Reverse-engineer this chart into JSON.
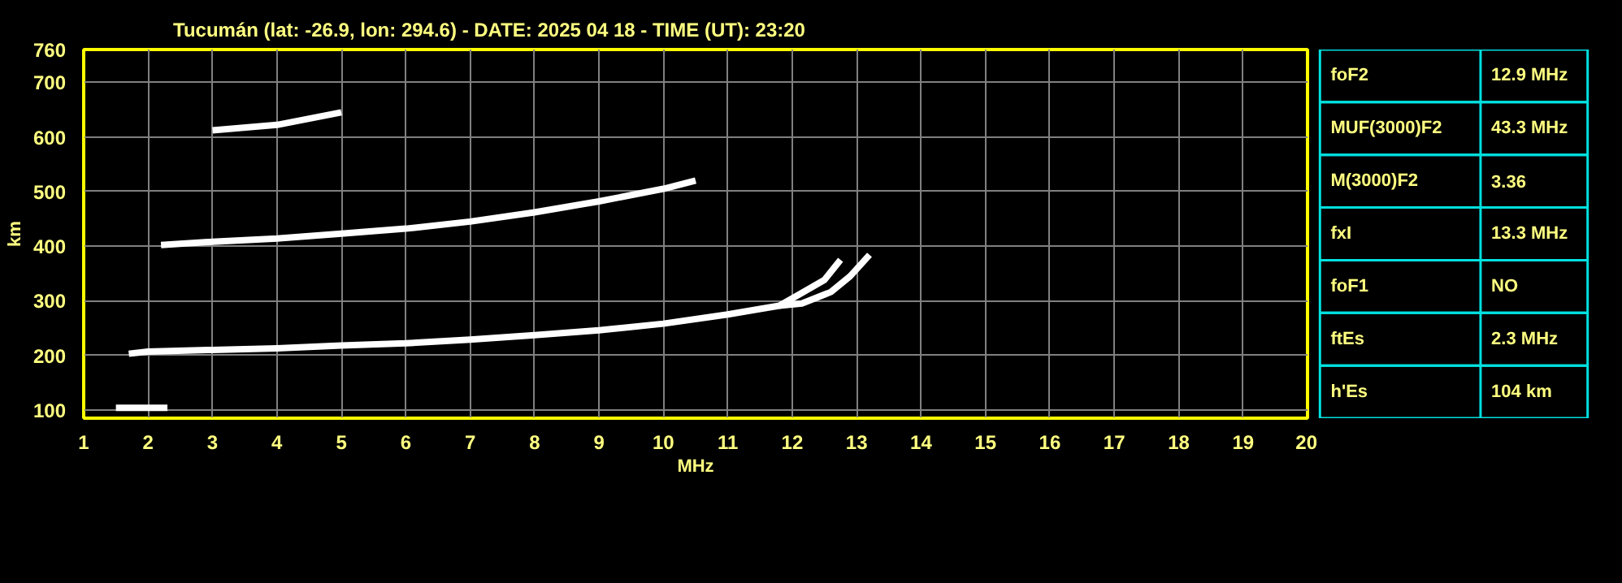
{
  "chart_data": [
    {
      "type": "line",
      "title": "Tucumán (lat: -26.9, lon: 294.6) - DATE: 2025 04 18 - TIME (UT): 23:20",
      "xlabel": "MHz",
      "ylabel": "km",
      "xlim": [
        1,
        20
      ],
      "ylim": [
        85,
        760
      ],
      "xticks": [
        1,
        2,
        3,
        4,
        5,
        6,
        7,
        8,
        9,
        10,
        11,
        12,
        13,
        14,
        15,
        16,
        17,
        18,
        19,
        20
      ],
      "yticks": [
        100,
        200,
        300,
        400,
        500,
        600,
        700,
        760
      ],
      "grid": true,
      "marker": "none",
      "line_style": "solid",
      "series": [
        {
          "color": "#ffffff",
          "x": [
            1.7,
            2,
            3,
            4,
            5,
            6,
            7,
            8,
            9,
            10,
            11,
            11.5,
            11.8,
            12.1,
            12.5,
            12.75
          ],
          "values": [
            203,
            207,
            210,
            213,
            218,
            222,
            229,
            237,
            246,
            258,
            275,
            285,
            291,
            311,
            338,
            375
          ]
        },
        {
          "color": "#ffffff",
          "x": [
            11.8,
            12.15,
            12.6,
            12.9,
            13.2
          ],
          "values": [
            291,
            295,
            316,
            345,
            384
          ]
        },
        {
          "color": "#ffffff",
          "x": [
            2.2,
            3,
            4,
            5,
            6,
            7,
            8,
            9,
            10,
            10.5
          ],
          "values": [
            402,
            408,
            414,
            423,
            432,
            445,
            462,
            482,
            505,
            520
          ]
        },
        {
          "color": "#ffffff",
          "x": [
            3,
            4,
            5
          ],
          "values": [
            612,
            622,
            645
          ]
        },
        {
          "color": "#ffffff",
          "x": [
            1.5,
            2.3
          ],
          "values": [
            104,
            104
          ]
        }
      ]
    },
    {
      "type": "other",
      "annotations": [
        "foF2",
        "12.9 MHz",
        "MUF(3000)F2",
        "43.3 MHz",
        "M(3000)F2",
        "3.36",
        "fxI",
        "13.3 MHz",
        "foF1",
        "NO",
        "ftEs",
        "2.3 MHz",
        "h'Es",
        "104 km"
      ]
    }
  ]
}
